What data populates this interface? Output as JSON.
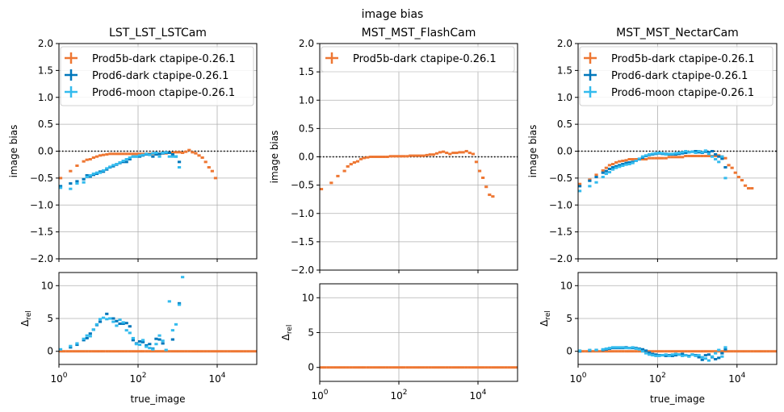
{
  "chart_data": {
    "type": "scatter",
    "title": "image bias",
    "x_scale": "log",
    "xlim": [
      1,
      100000
    ],
    "xticks": [
      1,
      100,
      10000
    ],
    "xticklabels": [
      "10^0",
      "10^2",
      "10^4"
    ],
    "grid": true,
    "colors": {
      "Prod5b-dark ctapipe-0.26.1": "#EE7733",
      "Prod6-dark ctapipe-0.26.1": "#0077BB",
      "Prod6-moon ctapipe-0.26.1": "#33BBEE"
    },
    "x": [
      1.1,
      1.33,
      1.62,
      1.96,
      2.37,
      2.87,
      3.48,
      4.22,
      5.11,
      6.19,
      7.5,
      9.09,
      11.0,
      13.3,
      16.2,
      19.6,
      23.7,
      28.7,
      34.8,
      42.2,
      51.1,
      61.9,
      75.0,
      90.9,
      110,
      133,
      162,
      196,
      237,
      287,
      348,
      422,
      511,
      619,
      750,
      909,
      1101,
      1334,
      1616,
      1957,
      2371,
      2873,
      3481,
      4217,
      5109,
      6190,
      7499,
      9085,
      11007,
      13335,
      16155,
      19573,
      23714,
      28730,
      34807,
      42170,
      51090,
      61897,
      74989,
      90852
    ],
    "panels": [
      {
        "title": "LST_LST_LSTCam",
        "ylabel": "image bias",
        "ylim": [
          -2,
          2
        ],
        "yticks": [
          2,
          1.5,
          1,
          0.5,
          0,
          -0.5,
          -1,
          -1.5,
          -2
        ],
        "yticklabels": [
          "2.0",
          "1.5",
          "1.0",
          "0.5",
          "0.0",
          "−0.5",
          "−1.0",
          "−1.5",
          "−2.0"
        ],
        "reference_line": 0,
        "legend": [
          "Prod5b-dark ctapipe-0.26.1",
          "Prod6-dark ctapipe-0.26.1",
          "Prod6-moon ctapipe-0.26.1"
        ],
        "series": [
          {
            "name": "Prod5b-dark ctapipe-0.26.1",
            "values": [
              -0.5,
              null,
              null,
              -0.37,
              null,
              -0.27,
              null,
              -0.19,
              -0.16,
              -0.15,
              -0.12,
              -0.1,
              -0.08,
              -0.07,
              -0.06,
              -0.05,
              -0.05,
              -0.05,
              -0.05,
              -0.05,
              -0.05,
              -0.05,
              -0.05,
              -0.05,
              -0.05,
              -0.05,
              -0.05,
              -0.05,
              -0.05,
              -0.05,
              -0.05,
              -0.04,
              -0.04,
              -0.03,
              -0.03,
              -0.02,
              -0.02,
              -0.03,
              -0.01,
              0.02,
              -0.02,
              -0.04,
              -0.08,
              -0.12,
              -0.2,
              -0.3,
              -0.37,
              -0.5
            ]
          },
          {
            "name": "Prod6-dark ctapipe-0.26.1",
            "values": [
              -0.65,
              null,
              null,
              -0.6,
              null,
              -0.56,
              null,
              -0.52,
              -0.45,
              -0.47,
              -0.44,
              -0.42,
              -0.38,
              -0.38,
              -0.34,
              -0.3,
              -0.28,
              -0.25,
              -0.22,
              -0.2,
              -0.2,
              -0.15,
              -0.1,
              -0.1,
              -0.1,
              -0.08,
              -0.06,
              -0.06,
              -0.1,
              -0.06,
              -0.05,
              -0.04,
              -0.03,
              -0.03,
              -0.06,
              -0.1,
              -0.2
            ]
          },
          {
            "name": "Prod6-moon ctapipe-0.26.1",
            "values": [
              -0.68,
              null,
              null,
              -0.7,
              null,
              -0.6,
              null,
              -0.58,
              -0.48,
              -0.45,
              -0.42,
              -0.4,
              -0.4,
              -0.36,
              -0.32,
              -0.29,
              -0.26,
              -0.24,
              -0.21,
              -0.18,
              -0.15,
              -0.12,
              -0.1,
              -0.1,
              -0.08,
              -0.07,
              -0.05,
              -0.07,
              -0.04,
              -0.03,
              -0.1,
              -0.03,
              -0.02,
              -0.1,
              -0.1,
              -0.1,
              -0.3
            ]
          }
        ]
      },
      {
        "ylabel": "Δ_rel",
        "xlabel": "true_image",
        "ylim": [
          -2,
          12
        ],
        "yticks": [
          0,
          5,
          10
        ],
        "yticklabels": [
          "0",
          "5",
          "10"
        ],
        "series": [
          {
            "name": "Prod5b-dark ctapipe-0.26.1",
            "values": [
              0,
              0,
              0,
              0,
              0,
              0,
              0,
              0,
              0,
              0,
              0,
              0,
              0,
              0,
              0,
              0,
              0,
              0,
              0,
              0,
              0,
              0,
              0,
              0,
              0,
              0,
              0,
              0,
              0,
              0,
              0,
              0,
              0,
              0,
              0,
              0,
              0,
              0,
              0,
              0,
              0,
              0,
              0,
              0,
              0,
              0,
              0,
              0,
              0,
              0,
              0,
              0,
              0,
              0,
              0,
              0,
              0,
              0,
              0,
              0
            ]
          },
          {
            "name": "Prod6-dark ctapipe-0.26.1",
            "values": [
              null,
              null,
              null,
              0.6,
              null,
              1.0,
              null,
              1.7,
              2.0,
              2.7,
              3.3,
              4.0,
              4.5,
              null,
              5.7,
              5.0,
              5.0,
              4.6,
              4.2,
              4.2,
              4.3,
              3.8,
              1.7,
              1.2,
              1.5,
              1.4,
              0.9,
              1.1,
              0.4,
              1.9,
              1.8,
              1.2,
              null,
              null,
              1.8,
              null,
              7.3
            ]
          },
          {
            "name": "Prod6-moon ctapipe-0.26.1",
            "values": [
              0.3,
              null,
              null,
              0.8,
              null,
              1.2,
              null,
              1.9,
              2.4,
              2.3,
              3.3,
              4.1,
              4.9,
              5.1,
              4.9,
              5.0,
              4.5,
              3.9,
              4.8,
              4.4,
              3.2,
              2.8,
              2.0,
              1.1,
              1.0,
              1.7,
              0.7,
              0.5,
              0.3,
              1.1,
              2.4,
              1.6,
              0.2,
              7.6,
              3.2,
              4.1,
              7.1,
              11.3
            ]
          }
        ]
      },
      {
        "title": "MST_MST_FlashCam",
        "ylabel": "image bias",
        "ylim": [
          -2,
          2
        ],
        "yticks": [
          2,
          1.5,
          1,
          0.5,
          0,
          -0.5,
          -1,
          -1.5,
          -2
        ],
        "yticklabels": [
          "2.0",
          "1.5",
          "1.0",
          "0.5",
          "0.0",
          "−0.5",
          "−1.0",
          "−1.5",
          "−2.0"
        ],
        "reference_line": 0,
        "legend": [
          "Prod5b-dark ctapipe-0.26.1"
        ],
        "series": [
          {
            "name": "Prod5b-dark ctapipe-0.26.1",
            "values": [
              -0.57,
              null,
              null,
              -0.46,
              null,
              -0.34,
              null,
              -0.25,
              -0.17,
              -0.13,
              -0.1,
              -0.08,
              -0.04,
              -0.02,
              -0.01,
              0,
              0,
              0,
              0,
              0,
              0,
              0.01,
              0.01,
              0.01,
              0.01,
              0.01,
              0.01,
              0.02,
              0.02,
              0.02,
              0.02,
              0.02,
              0.03,
              0.04,
              0.04,
              0.06,
              0.08,
              0.09,
              0.07,
              0.05,
              0.07,
              0.07,
              0.08,
              0.08,
              0.1,
              0.07,
              0.05,
              -0.09,
              -0.25,
              -0.37,
              -0.53,
              -0.67,
              -0.7
            ]
          }
        ]
      },
      {
        "ylabel": "Δ_rel",
        "ylim": [
          -2,
          12
        ],
        "yticks": [
          0,
          5,
          10
        ],
        "yticklabels": [
          "0",
          "5",
          "10"
        ],
        "series": [
          {
            "name": "Prod5b-dark ctapipe-0.26.1",
            "values": [
              0,
              0,
              0,
              0,
              0,
              0,
              0,
              0,
              0,
              0,
              0,
              0,
              0,
              0,
              0,
              0,
              0,
              0,
              0,
              0,
              0,
              0,
              0,
              0,
              0,
              0,
              0,
              0,
              0,
              0,
              0,
              0,
              0,
              0,
              0,
              0,
              0,
              0,
              0,
              0,
              0,
              0,
              0,
              0,
              0,
              0,
              0,
              0,
              0,
              0,
              0,
              0,
              0,
              0,
              0,
              0,
              0,
              0,
              0,
              0
            ]
          }
        ]
      },
      {
        "title": "MST_MST_NectarCam",
        "ylabel": "image bias",
        "ylim": [
          -2,
          2
        ],
        "yticks": [
          2,
          1.5,
          1,
          0.5,
          0,
          -0.5,
          -1,
          -1.5,
          -2
        ],
        "yticklabels": [
          "2.0",
          "1.5",
          "1.0",
          "0.5",
          "0.0",
          "−0.5",
          "−1.0",
          "−1.5",
          "−2.0"
        ],
        "reference_line": 0,
        "legend": [
          "Prod5b-dark ctapipe-0.26.1",
          "Prod6-dark ctapipe-0.26.1",
          "Prod6-moon ctapipe-0.26.1"
        ],
        "series": [
          {
            "name": "Prod5b-dark ctapipe-0.26.1",
            "values": [
              -0.61,
              null,
              null,
              -0.53,
              null,
              -0.44,
              null,
              -0.36,
              -0.31,
              -0.26,
              -0.24,
              -0.21,
              -0.19,
              -0.18,
              -0.17,
              -0.15,
              -0.15,
              -0.15,
              -0.15,
              -0.15,
              -0.15,
              -0.13,
              -0.13,
              -0.13,
              -0.13,
              -0.13,
              -0.13,
              -0.11,
              -0.11,
              -0.11,
              -0.11,
              -0.11,
              -0.09,
              -0.09,
              -0.09,
              -0.09,
              -0.09,
              -0.09,
              -0.09,
              -0.09,
              -0.09,
              -0.09,
              -0.08,
              -0.1,
              -0.13,
              -0.26,
              -0.31,
              -0.4,
              -0.48,
              -0.54,
              -0.64,
              -0.69,
              -0.69
            ]
          },
          {
            "name": "Prod6-dark ctapipe-0.26.1",
            "values": [
              -0.65,
              null,
              null,
              -0.55,
              null,
              -0.48,
              null,
              -0.4,
              -0.37,
              -0.33,
              -0.3,
              -0.28,
              -0.26,
              -0.24,
              -0.22,
              -0.21,
              -0.2,
              -0.18,
              -0.15,
              -0.12,
              -0.09,
              -0.07,
              -0.06,
              -0.05,
              -0.04,
              -0.05,
              -0.05,
              -0.06,
              -0.06,
              -0.06,
              -0.05,
              -0.04,
              -0.03,
              -0.02,
              -0.01,
              0.0,
              -0.02,
              -0.03,
              -0.01,
              -0.02,
              0.0,
              -0.06,
              -0.1,
              -0.14,
              -0.3
            ]
          },
          {
            "name": "Prod6-moon ctapipe-0.26.1",
            "values": [
              -0.74,
              null,
              null,
              -0.65,
              null,
              -0.58,
              null,
              -0.48,
              -0.42,
              -0.39,
              -0.34,
              -0.31,
              -0.29,
              -0.27,
              -0.25,
              -0.24,
              -0.22,
              -0.18,
              -0.14,
              -0.1,
              -0.08,
              -0.06,
              -0.05,
              -0.04,
              -0.03,
              -0.04,
              -0.06,
              -0.05,
              -0.05,
              -0.04,
              -0.03,
              -0.02,
              0.0,
              -0.02,
              -0.01,
              -0.03,
              0.0,
              -0.02,
              0.01,
              -0.05,
              -0.1,
              -0.15,
              -0.2,
              -0.1,
              -0.5
            ]
          }
        ]
      },
      {
        "ylabel": "Δ_rel",
        "xlabel": "true_image",
        "ylim": [
          -2,
          12
        ],
        "yticks": [
          0,
          5,
          10
        ],
        "yticklabels": [
          "0",
          "5",
          "10"
        ],
        "series": [
          {
            "name": "Prod5b-dark ctapipe-0.26.1",
            "values": [
              0,
              0,
              0,
              0,
              0,
              0,
              0,
              0,
              0,
              0,
              0,
              0,
              0,
              0,
              0,
              0,
              0,
              0,
              0,
              0,
              0,
              0,
              0,
              0,
              0,
              0,
              0,
              0,
              0,
              0,
              0,
              0,
              0,
              0,
              0,
              0,
              0,
              0,
              0,
              0,
              0,
              0,
              0,
              0,
              0,
              0,
              0,
              0,
              0,
              0,
              0,
              0,
              0,
              0,
              0,
              0,
              0,
              0,
              0,
              0
            ]
          },
          {
            "name": "Prod6-dark ctapipe-0.26.1",
            "values": [
              0.0,
              null,
              null,
              0.1,
              null,
              0.2,
              null,
              0.2,
              0.3,
              0.4,
              0.5,
              0.5,
              0.5,
              0.5,
              0.6,
              0.5,
              0.5,
              0.5,
              0.4,
              0.3,
              0.1,
              -0.2,
              -0.4,
              -0.5,
              -0.6,
              -0.6,
              -0.7,
              -0.6,
              -0.7,
              -0.6,
              -0.5,
              -0.4,
              -0.6,
              -0.7,
              -0.5,
              -0.6,
              -0.9,
              -1.3,
              -0.6,
              -0.5,
              -0.9,
              -1.2,
              -1.0,
              -0.3,
              0.3
            ]
          },
          {
            "name": "Prod6-moon ctapipe-0.26.1",
            "values": [
              0.1,
              null,
              null,
              0.2,
              null,
              0.2,
              null,
              0.3,
              0.4,
              0.5,
              0.6,
              0.6,
              0.6,
              0.6,
              0.5,
              0.5,
              0.6,
              0.4,
              0.3,
              0.0,
              -0.3,
              -0.5,
              -0.6,
              -0.7,
              -0.7,
              -0.6,
              -0.5,
              -0.7,
              -0.5,
              -0.4,
              -0.5,
              -0.7,
              -0.6,
              -0.8,
              -0.5,
              -0.7,
              -0.6,
              -0.9,
              -1.1,
              -1.4,
              -0.8,
              -0.3,
              0.2,
              -0.8,
              0.6
            ]
          }
        ]
      }
    ]
  }
}
